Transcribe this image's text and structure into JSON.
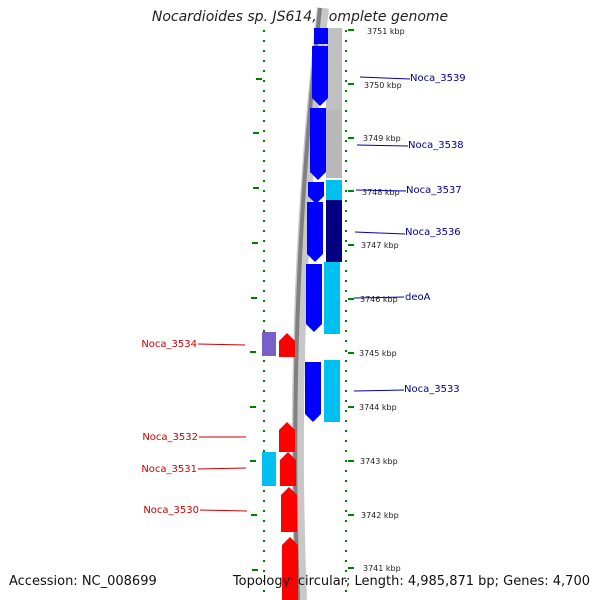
{
  "title": "Nocardioides sp. JS614, complete genome",
  "accession": "Accession: NC_008699",
  "summary": "Topology: circular; Length: 4,985,871 bp; Genes: 4,700",
  "colors": {
    "reverse_label": "#cc0000",
    "forward_label": "#00009a",
    "gene_red": "#ff0000",
    "gene_blue": "#0000ff",
    "gene_navy": "#000080",
    "gene_cyan": "#00c0f0",
    "gene_gray": "#b8b8b8",
    "gene_purple": "#7860c8",
    "dotted": "#008000"
  },
  "kbp_labels": [
    "3751 kbp",
    "3750 kbp",
    "3749 kbp",
    "3748 kbp",
    "3747 kbp",
    "3746 kbp",
    "3745 kbp",
    "3744 kbp",
    "3743 kbp",
    "3742 kbp",
    "3741 kbp"
  ],
  "forward_labels": [
    "Noca_3539",
    "Noca_3538",
    "Noca_3537",
    "Noca_3536",
    "deoA",
    "Noca_3533"
  ],
  "reverse_labels": [
    "Noca_3534",
    "Noca_3532",
    "Noca_3531",
    "Noca_3530"
  ]
}
